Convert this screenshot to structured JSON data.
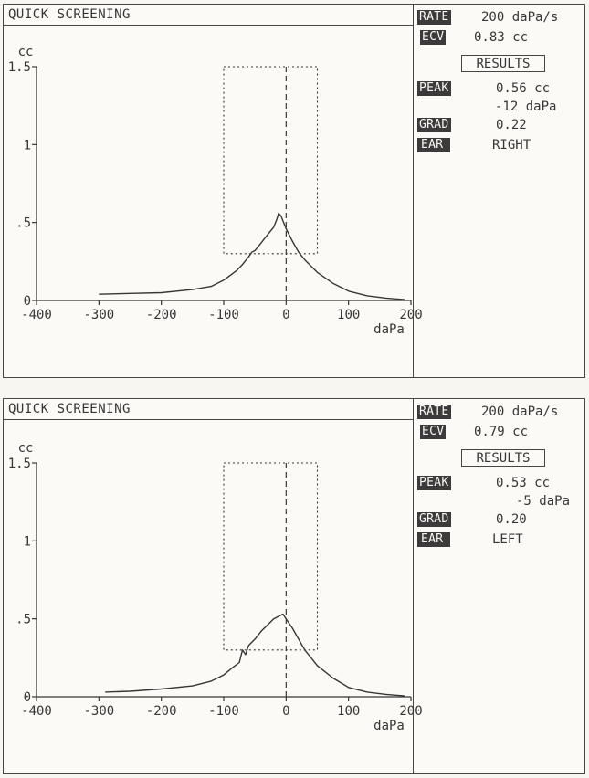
{
  "panels": [
    {
      "title": "QUICK SCREENING",
      "info": {
        "rate_label": "RATE",
        "rate_value": "200 daPa/s",
        "ecv_label": "ECV",
        "ecv_value": "0.83 cc",
        "results_label": "RESULTS",
        "peak_label": "PEAK",
        "peak_volume": "0.56 cc",
        "peak_pressure": "-12 daPa",
        "grad_label": "GRAD",
        "grad_value": "0.22",
        "ear_label": "EAR",
        "ear_value": "RIGHT"
      }
    },
    {
      "title": "QUICK SCREENING",
      "info": {
        "rate_label": "RATE",
        "rate_value": "200 daPa/s",
        "ecv_label": "ECV",
        "ecv_value": "0.79 cc",
        "results_label": "RESULTS",
        "peak_label": "PEAK",
        "peak_volume": "0.53 cc",
        "peak_pressure": "-5 daPa",
        "grad_label": "GRAD",
        "grad_value": "0.20",
        "ear_label": "EAR",
        "ear_value": "LEFT"
      }
    }
  ],
  "chart_data": [
    {
      "type": "line",
      "ylabel": "cc",
      "xlabel": "daPa",
      "xlim": [
        -400,
        200
      ],
      "ylim": [
        0,
        1.5
      ],
      "x_ticks": [
        -400,
        -300,
        -200,
        -100,
        0,
        100,
        200
      ],
      "x_tick_labels": [
        "-400",
        "-300",
        "-200",
        "-100",
        "0",
        "100",
        "200"
      ],
      "y_ticks": [
        0,
        0.5,
        1,
        1.5
      ],
      "y_tick_labels": [
        "0",
        ".5",
        "1",
        "1.5"
      ],
      "window_box": {
        "x": [
          -100,
          50
        ],
        "y": [
          0.3,
          1.5
        ]
      },
      "peak_marker_x": 0,
      "series": [
        {
          "x": [
            -300,
            -250,
            -200,
            -150,
            -120,
            -100,
            -80,
            -70,
            -60,
            -55,
            -50,
            -40,
            -30,
            -20,
            -15,
            -12,
            -8,
            -4,
            0,
            10,
            20,
            30,
            50,
            75,
            100,
            130,
            160,
            190
          ],
          "values": [
            0.04,
            0.045,
            0.05,
            0.07,
            0.09,
            0.13,
            0.19,
            0.23,
            0.28,
            0.31,
            0.32,
            0.37,
            0.42,
            0.47,
            0.52,
            0.56,
            0.54,
            0.5,
            0.46,
            0.38,
            0.31,
            0.26,
            0.18,
            0.11,
            0.06,
            0.03,
            0.015,
            0.005
          ]
        }
      ]
    },
    {
      "type": "line",
      "ylabel": "cc",
      "xlabel": "daPa",
      "xlim": [
        -400,
        200
      ],
      "ylim": [
        0,
        1.5
      ],
      "x_ticks": [
        -400,
        -300,
        -200,
        -100,
        0,
        100,
        200
      ],
      "x_tick_labels": [
        "-400",
        "-300",
        "-200",
        "-100",
        "0",
        "100",
        "200"
      ],
      "y_ticks": [
        0,
        0.5,
        1,
        1.5
      ],
      "y_tick_labels": [
        "0",
        ".5",
        "1",
        "1.5"
      ],
      "window_box": {
        "x": [
          -100,
          50
        ],
        "y": [
          0.3,
          1.5
        ]
      },
      "peak_marker_x": 0,
      "series": [
        {
          "x": [
            -290,
            -250,
            -200,
            -150,
            -120,
            -100,
            -85,
            -75,
            -70,
            -65,
            -60,
            -50,
            -40,
            -30,
            -20,
            -10,
            -5,
            0,
            10,
            20,
            30,
            50,
            75,
            100,
            130,
            160,
            190
          ],
          "values": [
            0.03,
            0.035,
            0.05,
            0.07,
            0.1,
            0.14,
            0.19,
            0.22,
            0.3,
            0.27,
            0.33,
            0.37,
            0.42,
            0.46,
            0.5,
            0.52,
            0.53,
            0.5,
            0.44,
            0.37,
            0.3,
            0.2,
            0.12,
            0.06,
            0.03,
            0.015,
            0.005
          ]
        }
      ]
    }
  ]
}
